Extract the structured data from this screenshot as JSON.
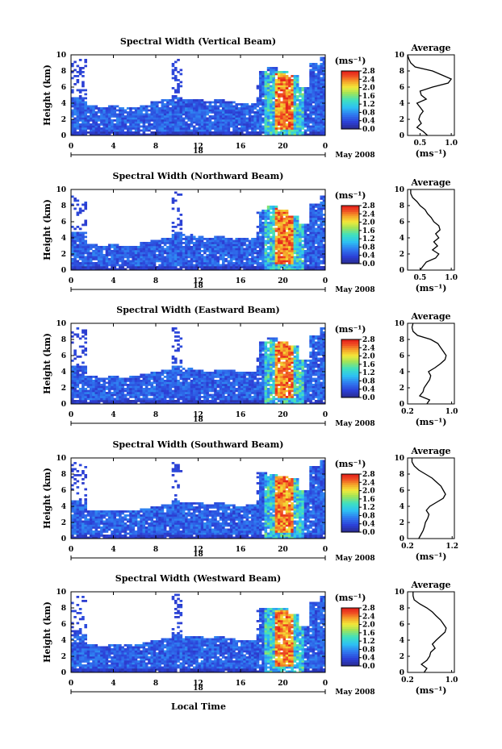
{
  "figure": {
    "x_axis_label": "Local Time",
    "date_marker": "18",
    "month_label": "May 2008",
    "unit_label": "(ms⁻¹)",
    "y_axis_label": "Height (km)",
    "average_title": "Average",
    "average_xlabel": "(ms⁻¹)"
  },
  "chart_data": [
    {
      "type": "heatmap",
      "title": "Spectral Width (Vertical Beam)",
      "ylabel": "Height (km)",
      "xlim": [
        0,
        24
      ],
      "ylim": [
        0,
        10
      ],
      "x_ticks": [
        "0",
        "4",
        "8",
        "12",
        "16",
        "20",
        "0"
      ],
      "y_ticks": [
        "0",
        "2",
        "4",
        "6",
        "8",
        "10"
      ],
      "colorbar": {
        "range": [
          0,
          2.8
        ],
        "ticks": [
          "0.0",
          "0.4",
          "0.8",
          "1.2",
          "1.6",
          "2.0",
          "2.4",
          "2.8"
        ]
      },
      "echo_top_km": [
        9.2,
        9.6,
        3.8,
        3.6,
        3.8,
        3.5,
        3.6,
        3.8,
        4.2,
        4.4,
        9.6,
        4.6,
        4.4,
        4.2,
        4.4,
        4.3,
        4.1,
        4.0,
        8.0,
        8.5,
        8.0,
        7.5,
        6.0,
        9.0,
        9.7
      ],
      "average": {
        "x_ticks": [
          "0.5",
          "1.0"
        ],
        "xlim": [
          0.3,
          1.05
        ],
        "heights": [
          0,
          0.5,
          1,
          1.5,
          2,
          2.5,
          3,
          3.5,
          4,
          4.5,
          5,
          5.5,
          6,
          6.5,
          7,
          7.5,
          8,
          8.5,
          9,
          9.5,
          10
        ],
        "values": [
          0.62,
          0.55,
          0.45,
          0.52,
          0.48,
          0.5,
          0.55,
          0.5,
          0.45,
          0.6,
          0.52,
          0.5,
          0.7,
          0.95,
          1.0,
          0.85,
          0.7,
          0.42,
          0.35,
          0.32,
          0.3
        ]
      }
    },
    {
      "type": "heatmap",
      "title": "Spectral Width (Northward Beam)",
      "ylabel": "Height (km)",
      "xlim": [
        0,
        24
      ],
      "ylim": [
        0,
        10
      ],
      "x_ticks": [
        "0",
        "4",
        "8",
        "12",
        "16",
        "20",
        "0"
      ],
      "y_ticks": [
        "0",
        "2",
        "4",
        "6",
        "8",
        "10"
      ],
      "colorbar": {
        "range": [
          0,
          2.8
        ],
        "ticks": [
          "0.0",
          "0.4",
          "0.8",
          "1.2",
          "1.6",
          "2.0",
          "2.4",
          "2.8"
        ]
      },
      "echo_top_km": [
        9.4,
        9.5,
        3.2,
        3.0,
        3.2,
        3.0,
        3.1,
        3.4,
        3.8,
        4.0,
        9.8,
        4.4,
        4.3,
        4.1,
        4.2,
        4.1,
        3.9,
        4.0,
        7.4,
        8.0,
        7.5,
        6.8,
        5.8,
        8.2,
        9.2
      ],
      "average": {
        "x_ticks": [
          "0.5",
          "1.0"
        ],
        "xlim": [
          0.3,
          1.05
        ],
        "heights": [
          0,
          0.5,
          1,
          1.5,
          2,
          2.5,
          3,
          3.5,
          4,
          4.5,
          5,
          5.5,
          6,
          6.5,
          7,
          7.5,
          8,
          8.5,
          9,
          9.5,
          10
        ],
        "values": [
          0.5,
          0.55,
          0.6,
          0.75,
          0.8,
          0.7,
          0.78,
          0.72,
          0.8,
          0.75,
          0.82,
          0.8,
          0.72,
          0.68,
          0.62,
          0.58,
          0.5,
          0.45,
          0.38,
          0.35,
          0.35
        ]
      }
    },
    {
      "type": "heatmap",
      "title": "Spectral Width (Eastward Beam)",
      "ylabel": "Height (km)",
      "xlim": [
        0,
        24
      ],
      "ylim": [
        0,
        10
      ],
      "x_ticks": [
        "0",
        "4",
        "8",
        "12",
        "16",
        "20",
        "0"
      ],
      "y_ticks": [
        "0",
        "2",
        "4",
        "6",
        "8",
        "10"
      ],
      "colorbar": {
        "range": [
          0,
          2.8
        ],
        "ticks": [
          "0.0",
          "0.4",
          "0.8",
          "1.2",
          "1.6",
          "2.0",
          "2.4",
          "2.8"
        ]
      },
      "echo_top_km": [
        9.6,
        9.4,
        3.6,
        3.3,
        3.5,
        3.3,
        3.4,
        3.7,
        4.0,
        4.2,
        9.5,
        4.5,
        4.3,
        4.1,
        4.3,
        4.2,
        4.0,
        4.0,
        7.8,
        8.2,
        7.8,
        7.2,
        5.6,
        8.6,
        9.5
      ],
      "average": {
        "x_ticks": [
          "0.2",
          "1.0"
        ],
        "xlim": [
          0.2,
          1.05
        ],
        "heights": [
          0,
          0.5,
          1,
          1.5,
          2,
          2.5,
          3,
          3.5,
          4,
          4.5,
          5,
          5.5,
          6,
          6.5,
          7,
          7.5,
          8,
          8.5,
          9,
          9.5,
          10
        ],
        "values": [
          0.55,
          0.6,
          0.42,
          0.48,
          0.5,
          0.55,
          0.6,
          0.62,
          0.58,
          0.7,
          0.8,
          0.88,
          0.9,
          0.85,
          0.8,
          0.75,
          0.62,
          0.38,
          0.3,
          0.28,
          0.3
        ]
      }
    },
    {
      "type": "heatmap",
      "title": "Spectral Width (Southward Beam)",
      "ylabel": "Height (km)",
      "xlim": [
        0,
        24
      ],
      "ylim": [
        0,
        10
      ],
      "x_ticks": [
        "0",
        "4",
        "8",
        "12",
        "16",
        "20",
        "0"
      ],
      "y_ticks": [
        "0",
        "2",
        "4",
        "6",
        "8",
        "10"
      ],
      "colorbar": {
        "range": [
          0,
          2.8
        ],
        "ticks": [
          "0.0",
          "0.4",
          "0.8",
          "1.2",
          "1.6",
          "2.0",
          "2.4",
          "2.8"
        ]
      },
      "echo_top_km": [
        9.8,
        9.2,
        3.6,
        3.4,
        3.6,
        3.4,
        3.5,
        3.8,
        4.0,
        4.3,
        9.6,
        4.6,
        4.4,
        4.2,
        4.4,
        4.2,
        4.0,
        4.2,
        8.2,
        8.0,
        7.8,
        7.4,
        6.0,
        9.0,
        9.8
      ],
      "average": {
        "x_ticks": [
          "0.2",
          "1.2"
        ],
        "xlim": [
          0.2,
          1.25
        ],
        "heights": [
          0,
          0.5,
          1,
          1.5,
          2,
          2.5,
          3,
          3.5,
          4,
          4.5,
          5,
          5.5,
          6,
          6.5,
          7,
          7.5,
          8,
          8.5,
          9,
          9.5,
          10
        ],
        "values": [
          0.45,
          0.5,
          0.55,
          0.58,
          0.6,
          0.65,
          0.68,
          0.62,
          0.7,
          0.85,
          1.0,
          1.05,
          1.0,
          0.95,
          0.85,
          0.75,
          0.6,
          0.45,
          0.35,
          0.3,
          0.3
        ]
      }
    },
    {
      "type": "heatmap",
      "title": "Spectral Width (Westward Beam)",
      "ylabel": "Height (km)",
      "xlabel": "Local Time",
      "xlim": [
        0,
        24
      ],
      "ylim": [
        0,
        10
      ],
      "x_ticks": [
        "0",
        "4",
        "8",
        "12",
        "16",
        "20",
        "0"
      ],
      "y_ticks": [
        "0",
        "2",
        "4",
        "6",
        "8",
        "10"
      ],
      "colorbar": {
        "range": [
          0,
          2.8
        ],
        "ticks": [
          "0.0",
          "0.4",
          "0.8",
          "1.2",
          "1.6",
          "2.0",
          "2.4",
          "2.8"
        ]
      },
      "echo_top_km": [
        9.4,
        9.6,
        3.4,
        3.2,
        3.6,
        3.4,
        3.5,
        3.8,
        4.1,
        4.3,
        9.8,
        4.6,
        4.4,
        4.2,
        4.4,
        4.3,
        4.1,
        4.1,
        8.0,
        8.1,
        7.9,
        7.3,
        5.8,
        8.8,
        9.6
      ],
      "average": {
        "x_ticks": [
          "0.2",
          "1.0"
        ],
        "xlim": [
          0.2,
          1.05
        ],
        "heights": [
          0,
          0.5,
          1,
          1.5,
          2,
          2.5,
          3,
          3.5,
          4,
          4.5,
          5,
          5.5,
          6,
          6.5,
          7,
          7.5,
          8,
          8.5,
          9,
          9.5,
          10
        ],
        "values": [
          0.5,
          0.55,
          0.45,
          0.55,
          0.6,
          0.62,
          0.7,
          0.65,
          0.72,
          0.8,
          0.88,
          0.9,
          0.85,
          0.8,
          0.72,
          0.65,
          0.55,
          0.42,
          0.32,
          0.3,
          0.3
        ]
      }
    }
  ]
}
